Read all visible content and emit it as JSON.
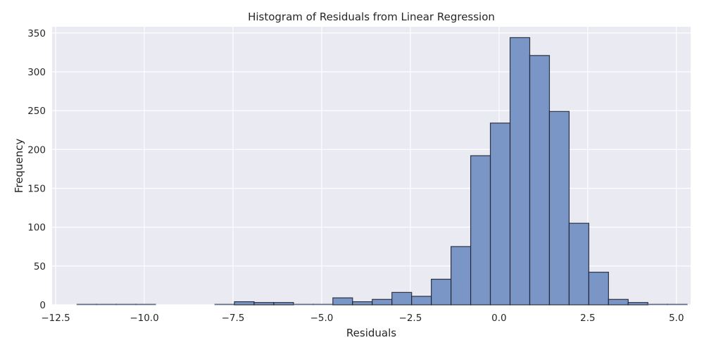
{
  "chart_data": {
    "type": "bar",
    "title": "Histogram of Residuals from Linear Regression",
    "xlabel": "Residuals",
    "ylabel": "Frequency",
    "xlim": [
      -12.6,
      5.4
    ],
    "ylim": [
      0,
      358
    ],
    "x_ticks": [
      -12.5,
      -10.0,
      -7.5,
      -5.0,
      -2.5,
      0.0,
      2.5,
      5.0
    ],
    "x_tick_labels": [
      "−12.5",
      "−10.0",
      "−7.5",
      "−5.0",
      "−2.5",
      "0.0",
      "2.5",
      "5.0"
    ],
    "y_ticks": [
      0,
      50,
      100,
      150,
      200,
      250,
      300,
      350
    ],
    "y_tick_labels": [
      "0",
      "50",
      "100",
      "150",
      "200",
      "250",
      "300",
      "350"
    ],
    "bin_start": -11.9,
    "bin_width": 0.555,
    "values": [
      1,
      1,
      1,
      1,
      0,
      0,
      0,
      1,
      4,
      3,
      3,
      1,
      1,
      9,
      4,
      7,
      16,
      11,
      33,
      75,
      192,
      234,
      344,
      321,
      249,
      105,
      42,
      7,
      3,
      1,
      1
    ],
    "grid": true,
    "colors": {
      "background": "#eaeaf2",
      "grid": "#ffffff",
      "bar_fill": "#7a96c7",
      "bar_edge": "#1f2230"
    }
  }
}
